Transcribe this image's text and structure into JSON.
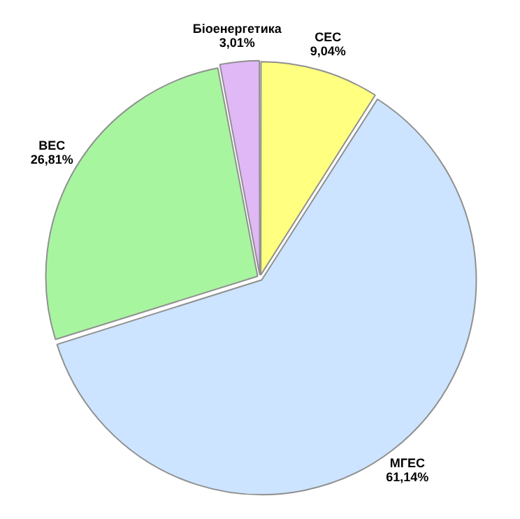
{
  "chart_data": {
    "type": "pie",
    "categories": [
      "СЕС",
      "МГЕС",
      "ВЕС",
      "Біоенергетика"
    ],
    "values": [
      9.04,
      61.14,
      26.81,
      3.01
    ],
    "colors": [
      "#ffff80",
      "#cce4ff",
      "#a8f5a0",
      "#e0b8f5"
    ],
    "value_labels": [
      "9,04%",
      "61,14%",
      "26,81%",
      "3,01%"
    ],
    "legend": false
  }
}
